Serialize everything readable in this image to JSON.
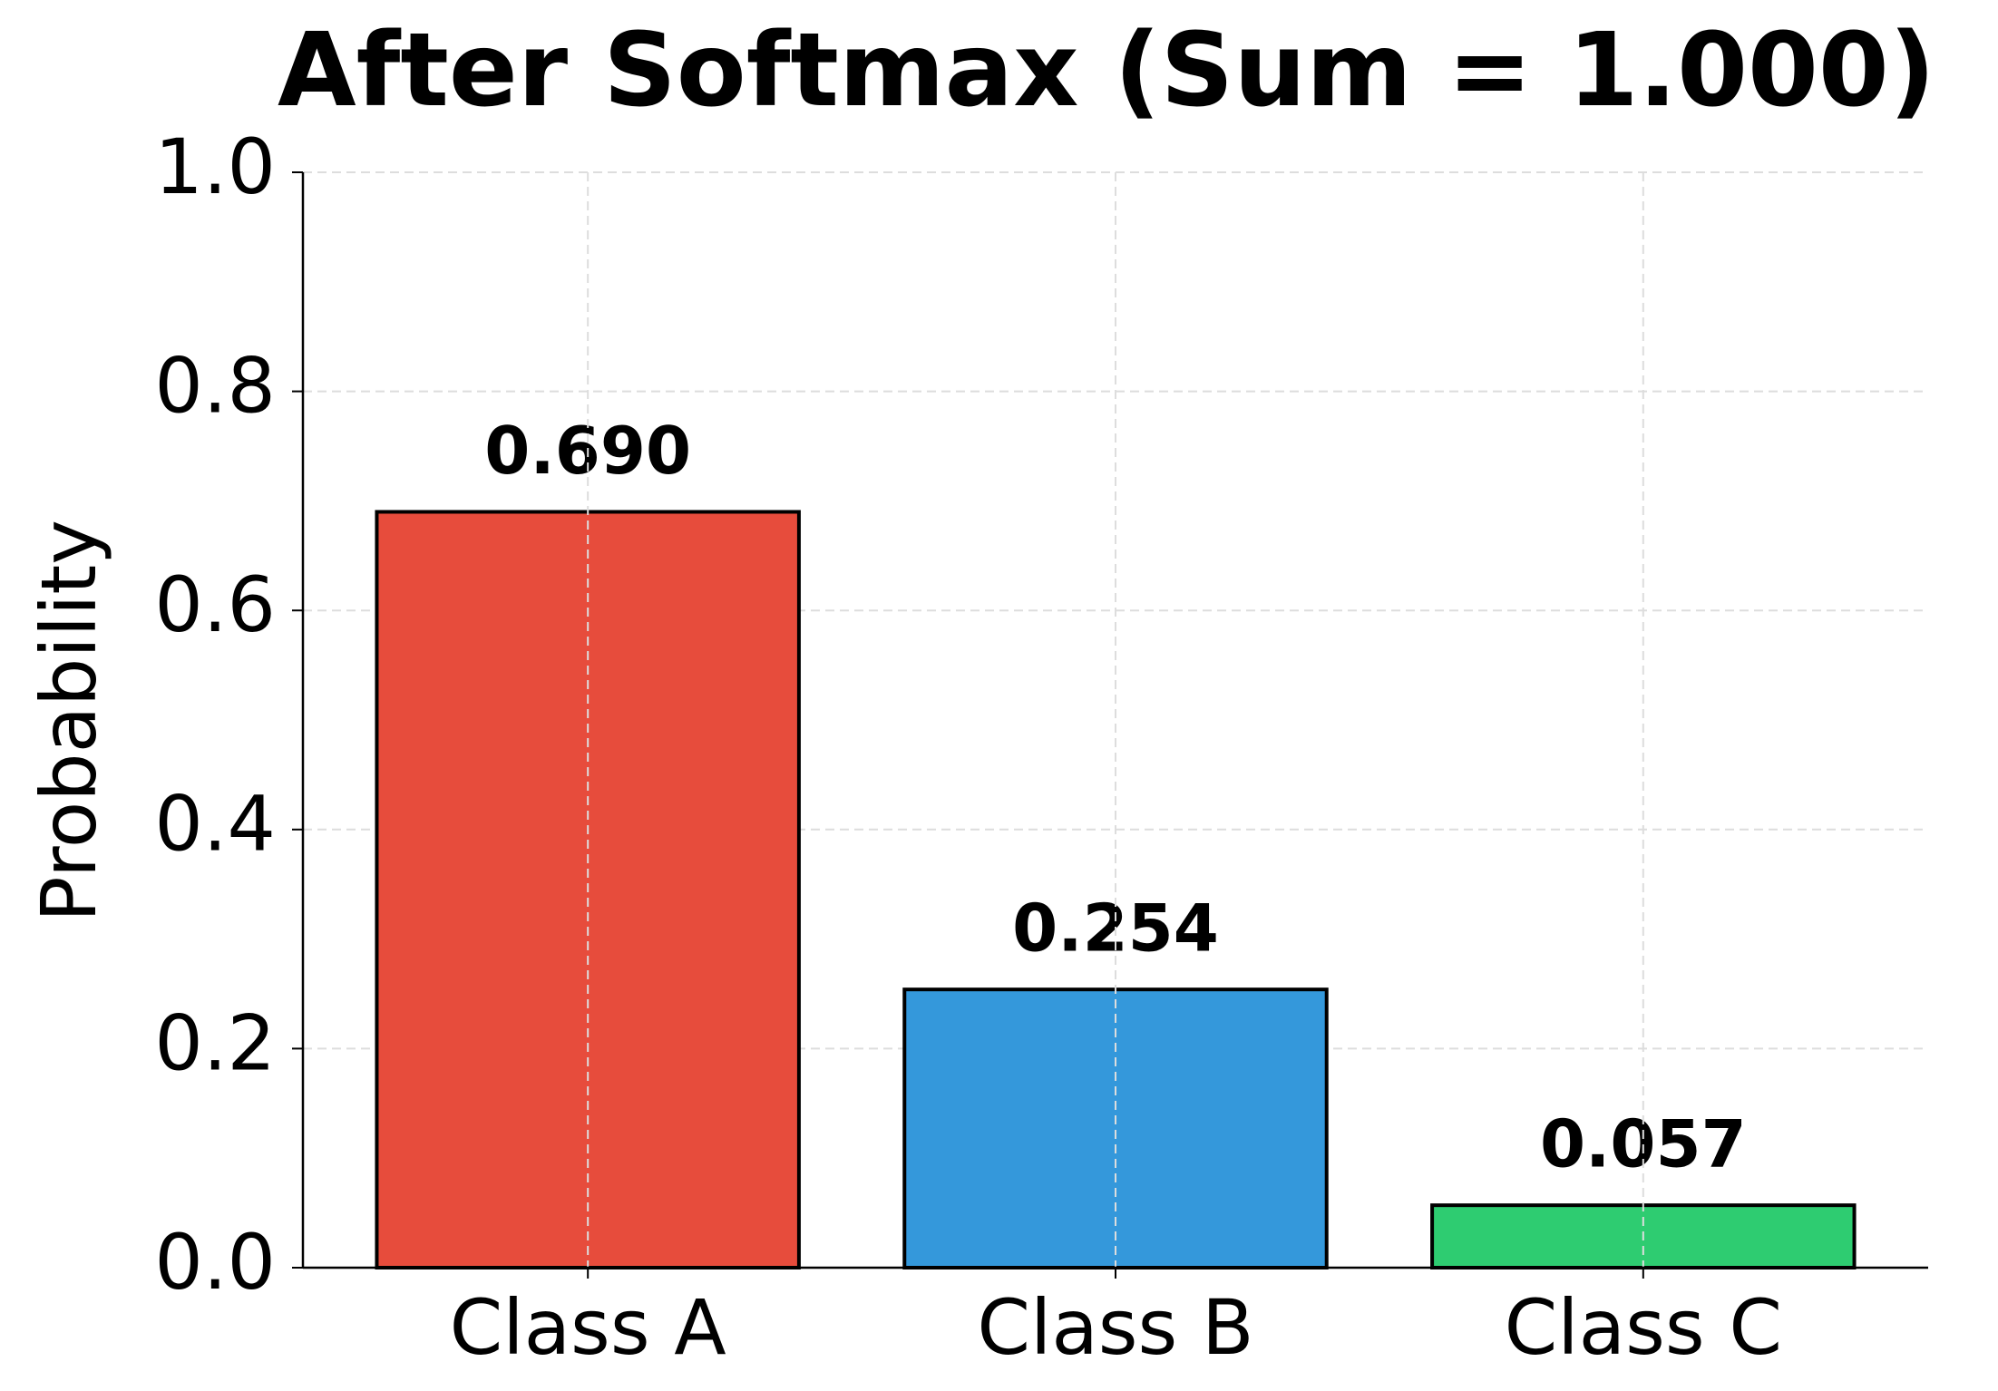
{
  "chart_data": {
    "type": "bar",
    "title": "After Softmax (Sum = 1.000)",
    "y_label": "Probability",
    "categories": [
      "Class A",
      "Class B",
      "Class C"
    ],
    "values": [
      0.69,
      0.254,
      0.057
    ],
    "value_labels": [
      "0.690",
      "0.254",
      "0.057"
    ],
    "colors": [
      "#e74c3c",
      "#3498db",
      "#2ecc71"
    ],
    "ylim": [
      0,
      1
    ],
    "yticks": [
      {
        "value": 0,
        "label": "0.0"
      },
      0.2,
      0.4,
      0.6,
      0.8,
      {
        "value": 1,
        "label": "1.0"
      }
    ],
    "grid": true
  }
}
